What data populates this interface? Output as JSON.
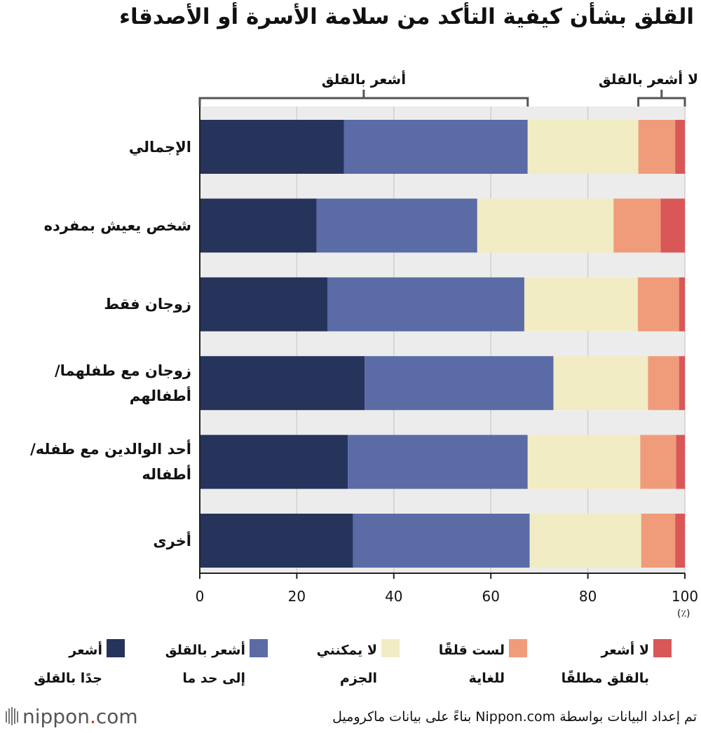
{
  "title": "القلق بشأن كيفية التأكد من سلامة الأسرة أو الأصدقاء",
  "chart_data": {
    "type": "bar",
    "orientation": "horizontal",
    "stacked": true,
    "categories": [
      "الإجمالي",
      "شخص يعيش بمفرده",
      "زوجان فقط",
      "زوجان مع طفلهما/\nأطفالهم",
      "أحد الوالدين مع طفله/\nأطفاله",
      "أخرى"
    ],
    "series": [
      {
        "name": "أشعر\nجدًا بالقلق",
        "color": "#26335b",
        "values": [
          29.7,
          24.1,
          26.3,
          34.0,
          30.5,
          31.6
        ]
      },
      {
        "name": "أشعر بالقلق\nإلى حد ما",
        "color": "#5a6ba6",
        "values": [
          37.9,
          33.1,
          40.6,
          38.9,
          37.1,
          36.4
        ]
      },
      {
        "name": "لا يمكنني\nالجزم",
        "color": "#f1ecc3",
        "values": [
          22.8,
          28.1,
          23.4,
          19.5,
          23.2,
          23.0
        ]
      },
      {
        "name": "لست قلقًا\nللغاية",
        "color": "#f09c7b",
        "values": [
          7.6,
          9.7,
          8.5,
          6.4,
          7.4,
          7.0
        ]
      },
      {
        "name": "لا أشعر\nبالقلق مطلقًا",
        "color": "#d95757",
        "values": [
          2.0,
          5.0,
          1.2,
          1.2,
          1.8,
          2.0
        ]
      }
    ],
    "xlim": [
      0,
      100
    ],
    "xticks": [
      0,
      20,
      40,
      60,
      80,
      100
    ],
    "unit": "(٪)",
    "grid": true,
    "brackets": [
      {
        "label": "أشعر بالقلق",
        "from": 0,
        "to": 67.6
      },
      {
        "label": "لا أشعر بالقلق",
        "from": 90.4,
        "to": 100
      }
    ],
    "legend_position": "bottom"
  },
  "logo": {
    "prefix": "nippon",
    "dot": ".",
    "suffix": "com"
  },
  "source": "تم إعداد البيانات بواسطة Nippon.com بناءً على بيانات ماكروميل"
}
